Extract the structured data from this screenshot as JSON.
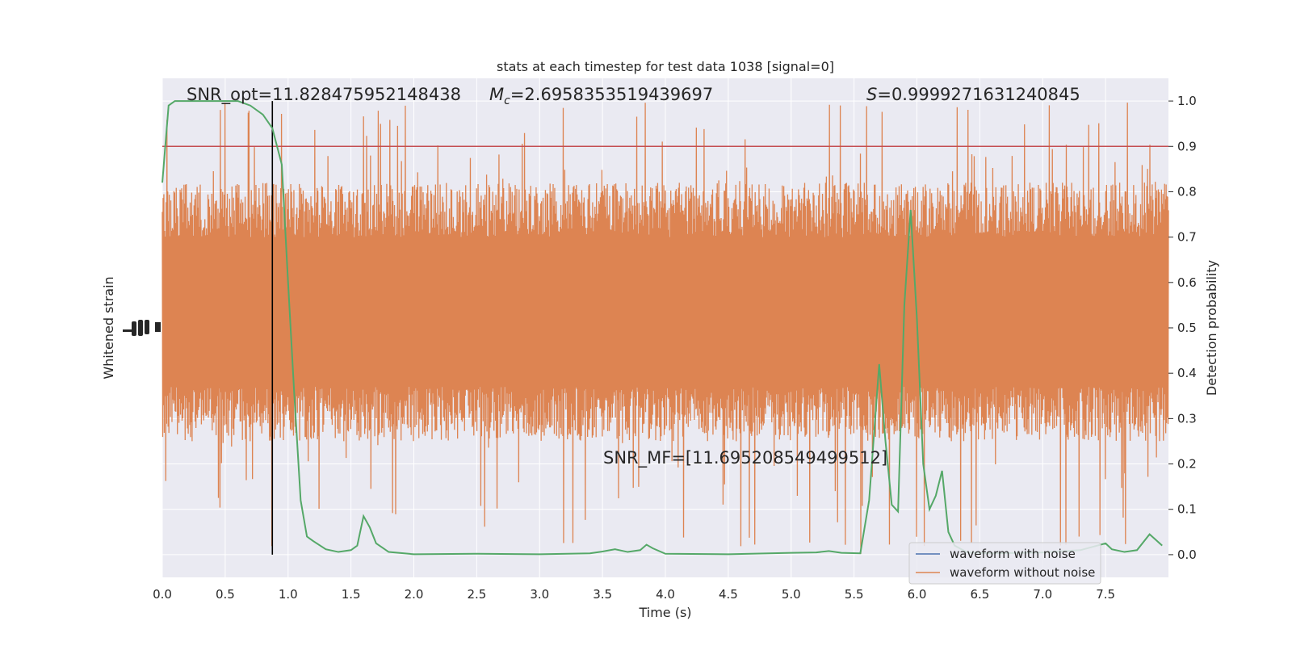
{
  "chart_data": {
    "type": "line",
    "title": "stats at each timestep for test data 1038 [signal=0]",
    "xlabel": "Time (s)",
    "ylabel_left": "Whitened strain",
    "ylabel_right": "Detection probability",
    "xlim": [
      0.0,
      8.0
    ],
    "ylim_right": [
      -0.05,
      1.05
    ],
    "xticks": [
      "0.0",
      "0.5",
      "1.0",
      "1.5",
      "2.0",
      "2.5",
      "3.0",
      "3.5",
      "4.0",
      "4.5",
      "5.0",
      "5.5",
      "6.0",
      "6.5",
      "7.0",
      "7.5"
    ],
    "xtick_values": [
      0.0,
      0.5,
      1.0,
      1.5,
      2.0,
      2.5,
      3.0,
      3.5,
      4.0,
      4.5,
      5.0,
      5.5,
      6.0,
      6.5,
      7.0,
      7.5
    ],
    "yticks_right": [
      "0.0",
      "0.1",
      "0.2",
      "0.3",
      "0.4",
      "0.5",
      "0.6",
      "0.7",
      "0.8",
      "0.9",
      "1.0"
    ],
    "ytick_right_values": [
      0.0,
      0.1,
      0.2,
      0.3,
      0.4,
      0.5,
      0.6,
      0.7,
      0.8,
      0.9,
      1.0
    ],
    "grid": true,
    "legend_position": "lower-right",
    "annotations": {
      "snr_opt": "SNR_opt=11.828475952148438",
      "mc_symbol": "M",
      "mc_sub": "c",
      "mc_value": "=2.6958353519439697",
      "s_symbol": "S",
      "s_value": "=0.9999271631240845",
      "snr_mf": "SNR_MF=[11.695208549499512]"
    },
    "threshold": 0.9,
    "marker_time": 0.875,
    "series": [
      {
        "name": "waveform with noise",
        "color": "#4c72b0"
      },
      {
        "name": "waveform without noise",
        "color": "#dd8452",
        "envelope_right_units": {
          "upper_typical": 0.82,
          "lower_typical": 0.25,
          "upper_peak": 1.0,
          "lower_peak": 0.0
        }
      },
      {
        "name": "",
        "color": "#55a868",
        "points": [
          [
            0.0,
            0.82
          ],
          [
            0.05,
            0.99
          ],
          [
            0.1,
            1.0
          ],
          [
            0.2,
            1.0
          ],
          [
            0.3,
            1.0
          ],
          [
            0.4,
            1.0
          ],
          [
            0.5,
            1.0
          ],
          [
            0.6,
            1.0
          ],
          [
            0.7,
            0.99
          ],
          [
            0.8,
            0.97
          ],
          [
            0.875,
            0.94
          ],
          [
            0.95,
            0.86
          ],
          [
            1.0,
            0.6
          ],
          [
            1.05,
            0.35
          ],
          [
            1.1,
            0.12
          ],
          [
            1.15,
            0.04
          ],
          [
            1.2,
            0.03
          ],
          [
            1.3,
            0.012
          ],
          [
            1.4,
            0.006
          ],
          [
            1.5,
            0.01
          ],
          [
            1.55,
            0.02
          ],
          [
            1.6,
            0.085
          ],
          [
            1.65,
            0.06
          ],
          [
            1.7,
            0.025
          ],
          [
            1.8,
            0.006
          ],
          [
            2.0,
            0.001
          ],
          [
            2.5,
            0.002
          ],
          [
            3.0,
            0.001
          ],
          [
            3.4,
            0.003
          ],
          [
            3.5,
            0.007
          ],
          [
            3.6,
            0.012
          ],
          [
            3.7,
            0.006
          ],
          [
            3.8,
            0.01
          ],
          [
            3.85,
            0.022
          ],
          [
            3.9,
            0.014
          ],
          [
            4.0,
            0.002
          ],
          [
            4.5,
            0.001
          ],
          [
            5.0,
            0.004
          ],
          [
            5.2,
            0.005
          ],
          [
            5.3,
            0.008
          ],
          [
            5.4,
            0.004
          ],
          [
            5.55,
            0.003
          ],
          [
            5.62,
            0.12
          ],
          [
            5.7,
            0.42
          ],
          [
            5.75,
            0.25
          ],
          [
            5.8,
            0.11
          ],
          [
            5.85,
            0.095
          ],
          [
            5.9,
            0.55
          ],
          [
            5.95,
            0.76
          ],
          [
            6.0,
            0.52
          ],
          [
            6.05,
            0.2
          ],
          [
            6.1,
            0.1
          ],
          [
            6.15,
            0.13
          ],
          [
            6.2,
            0.185
          ],
          [
            6.25,
            0.05
          ],
          [
            6.3,
            0.02
          ],
          [
            6.4,
            0.005
          ],
          [
            6.6,
            0.003
          ],
          [
            7.0,
            0.005
          ],
          [
            7.3,
            0.01
          ],
          [
            7.5,
            0.025
          ],
          [
            7.55,
            0.012
          ],
          [
            7.65,
            0.006
          ],
          [
            7.75,
            0.01
          ],
          [
            7.85,
            0.045
          ],
          [
            7.95,
            0.02
          ]
        ]
      }
    ]
  },
  "colors": {
    "plot_bg": "#eaeaf2",
    "grid": "#ffffff",
    "threshold": "#c44e52",
    "marker": "#000000"
  }
}
